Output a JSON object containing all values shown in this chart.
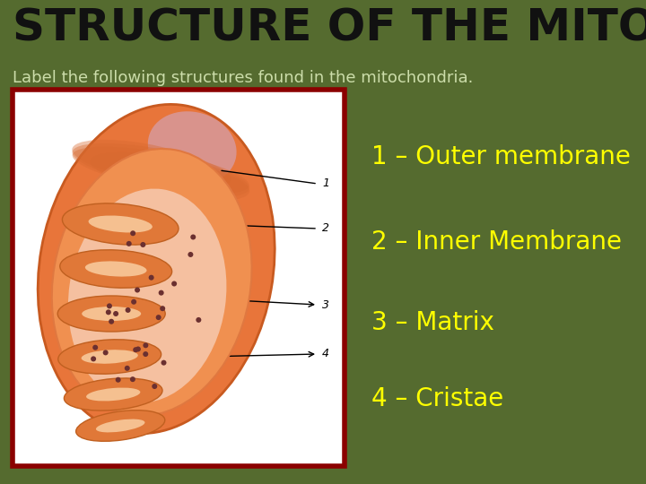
{
  "title": "STRUCTURE OF THE MITOCHONDRIA",
  "subtitle": "Label the following structures found in the mitochondria.",
  "bg_color": "#556B2F",
  "title_color": "#111111",
  "subtitle_color": "#CCDDAA",
  "labels": [
    "1 – Outer membrane",
    "2 – Inner Membrane",
    "3 – Matrix",
    "4 – Cristae"
  ],
  "label_color": "#FFFF00",
  "label_fontsize": 20,
  "image_border_color": "#8B0000",
  "title_fontsize": 36,
  "subtitle_fontsize": 13
}
